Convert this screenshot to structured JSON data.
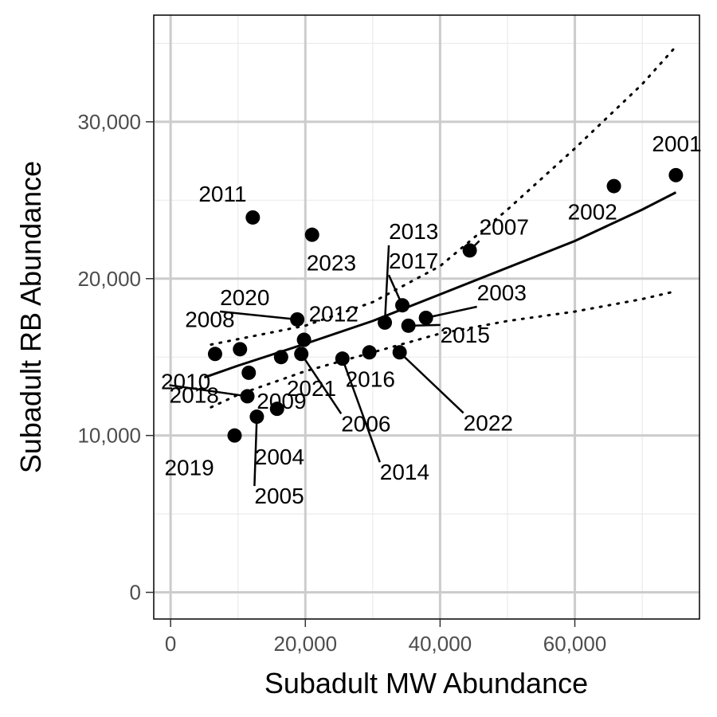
{
  "chart_data": {
    "type": "scatter",
    "xlabel": "Subadult MW Abundance",
    "ylabel": "Subadult RB Abundance",
    "xlim": [
      -2500,
      78500
    ],
    "ylim": [
      -1700,
      36800
    ],
    "x_ticks": [
      {
        "value": 0,
        "label": "0"
      },
      {
        "value": 20000,
        "label": "20,000"
      },
      {
        "value": 40000,
        "label": "40,000"
      },
      {
        "value": 60000,
        "label": "60,000"
      }
    ],
    "y_ticks": [
      {
        "value": 0,
        "label": "0"
      },
      {
        "value": 10000,
        "label": "10,000"
      },
      {
        "value": 20000,
        "label": "20,000"
      },
      {
        "value": 30000,
        "label": "30,000"
      }
    ],
    "grid": true,
    "points": [
      {
        "label": "2001",
        "x": 75000,
        "y": 26600
      },
      {
        "label": "2002",
        "x": 65800,
        "y": 25900
      },
      {
        "label": "2003",
        "x": 37900,
        "y": 17500
      },
      {
        "label": "2004",
        "x": 15800,
        "y": 11700
      },
      {
        "label": "2005",
        "x": 12800,
        "y": 11200
      },
      {
        "label": "2006",
        "x": 19400,
        "y": 15200
      },
      {
        "label": "2007",
        "x": 44400,
        "y": 21800
      },
      {
        "label": "2008",
        "x": 10300,
        "y": 15500
      },
      {
        "label": "2009",
        "x": 11600,
        "y": 14000
      },
      {
        "label": "2010",
        "x": 6600,
        "y": 15200
      },
      {
        "label": "2011",
        "x": 12200,
        "y": 23900
      },
      {
        "label": "2012",
        "x": 19800,
        "y": 16100
      },
      {
        "label": "2013",
        "x": 31800,
        "y": 17200
      },
      {
        "label": "2014",
        "x": 25500,
        "y": 14900
      },
      {
        "label": "2015",
        "x": 35300,
        "y": 17000
      },
      {
        "label": "2016",
        "x": 29500,
        "y": 15300
      },
      {
        "label": "2017",
        "x": 34400,
        "y": 18300
      },
      {
        "label": "2018",
        "x": 11400,
        "y": 12500
      },
      {
        "label": "2019",
        "x": 9500,
        "y": 10000
      },
      {
        "label": "2020",
        "x": 18800,
        "y": 17400
      },
      {
        "label": "2021",
        "x": 16400,
        "y": 15000
      },
      {
        "label": "2022",
        "x": 34000,
        "y": 15300
      },
      {
        "label": "2023",
        "x": 21000,
        "y": 22800
      }
    ],
    "fit": {
      "x": [
        5000,
        10000,
        20000,
        30000,
        40000,
        50000,
        60000,
        70000,
        75000
      ],
      "y": [
        13700,
        14450,
        15850,
        17300,
        19000,
        20700,
        22400,
        24400,
        25500
      ]
    },
    "upper_bound": {
      "x": [
        6000,
        20000,
        30000,
        40000,
        50000,
        60000,
        70000,
        75000
      ],
      "y": [
        15800,
        17000,
        18500,
        20800,
        24400,
        28300,
        32400,
        34800
      ]
    },
    "lower_bound": {
      "x": [
        6000,
        10000,
        20000,
        30000,
        40000,
        50000,
        60000,
        70000,
        75000
      ],
      "y": [
        11800,
        12600,
        14100,
        15300,
        16500,
        17300,
        17900,
        18700,
        19200
      ]
    }
  }
}
